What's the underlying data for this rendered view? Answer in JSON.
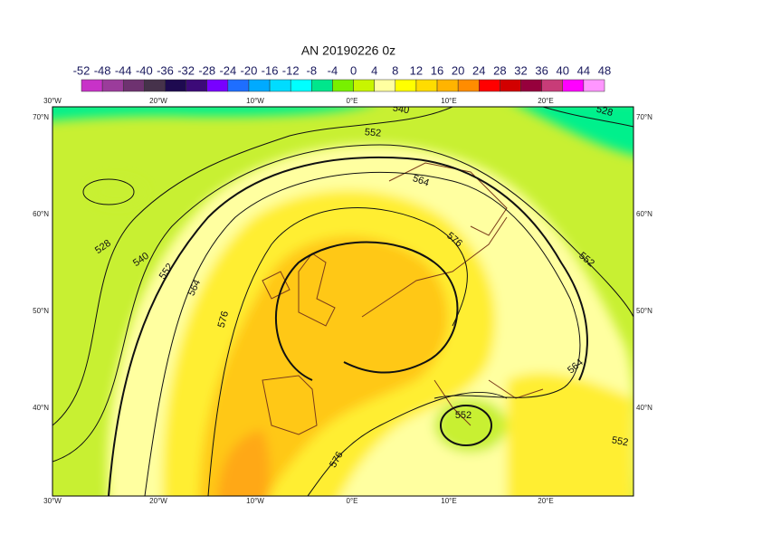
{
  "title": "AN 20190226 0z",
  "colorbar": {
    "ticks": [
      -52,
      -48,
      -44,
      -40,
      -36,
      -32,
      -28,
      -24,
      -20,
      -16,
      -12,
      -8,
      -4,
      0,
      4,
      8,
      12,
      16,
      20,
      24,
      28,
      32,
      36,
      40,
      44,
      48
    ],
    "colors": [
      "#c832c8",
      "#9b3c9b",
      "#6e3270",
      "#46324b",
      "#1e0a50",
      "#3c0a78",
      "#7800ff",
      "#1e6eff",
      "#00aaff",
      "#00dcff",
      "#00ffff",
      "#00e68c",
      "#78f000",
      "#c8f500",
      "#ffffa0",
      "#ffff00",
      "#ffdc00",
      "#ffb400",
      "#ff8c00",
      "#ff0000",
      "#d20000",
      "#96003c",
      "#c83c78",
      "#ff00ff",
      "#ff96ff"
    ]
  },
  "lon_labels": [
    "30°W",
    "20°W",
    "10°W",
    "0°E",
    "10°E",
    "20°E"
  ],
  "lat_labels": [
    "70°N",
    "60°N",
    "50°N",
    "40°N"
  ],
  "contour_labels": [
    540,
    528,
    552,
    564,
    576,
    552,
    528,
    540,
    552,
    564,
    576,
    564,
    552,
    552,
    576
  ]
}
